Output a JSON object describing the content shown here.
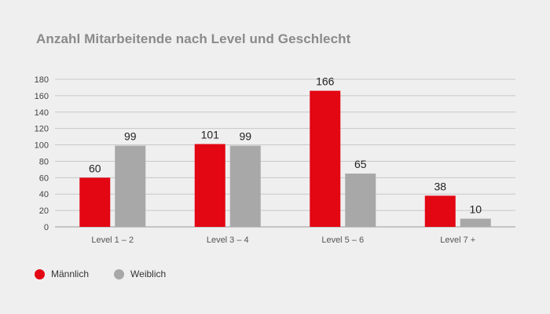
{
  "chart_data": {
    "type": "bar",
    "title": "Anzahl Mitarbeitende nach Level und Geschlecht",
    "xlabel": "",
    "ylabel": "",
    "categories": [
      "Level 1 – 2",
      "Level 3 – 4",
      "Level 5 – 6",
      "Level 7 +"
    ],
    "series": [
      {
        "name": "Männlich",
        "values": [
          60,
          101,
          166,
          38
        ],
        "color": "#e30613"
      },
      {
        "name": "Weiblich",
        "values": [
          99,
          99,
          65,
          10
        ],
        "color": "#a8a8a8"
      }
    ],
    "ylim": [
      0,
      180
    ],
    "yticks": [
      0,
      20,
      40,
      60,
      80,
      100,
      120,
      140,
      160,
      180
    ],
    "grid": true,
    "legend_position": "bottom-left"
  }
}
